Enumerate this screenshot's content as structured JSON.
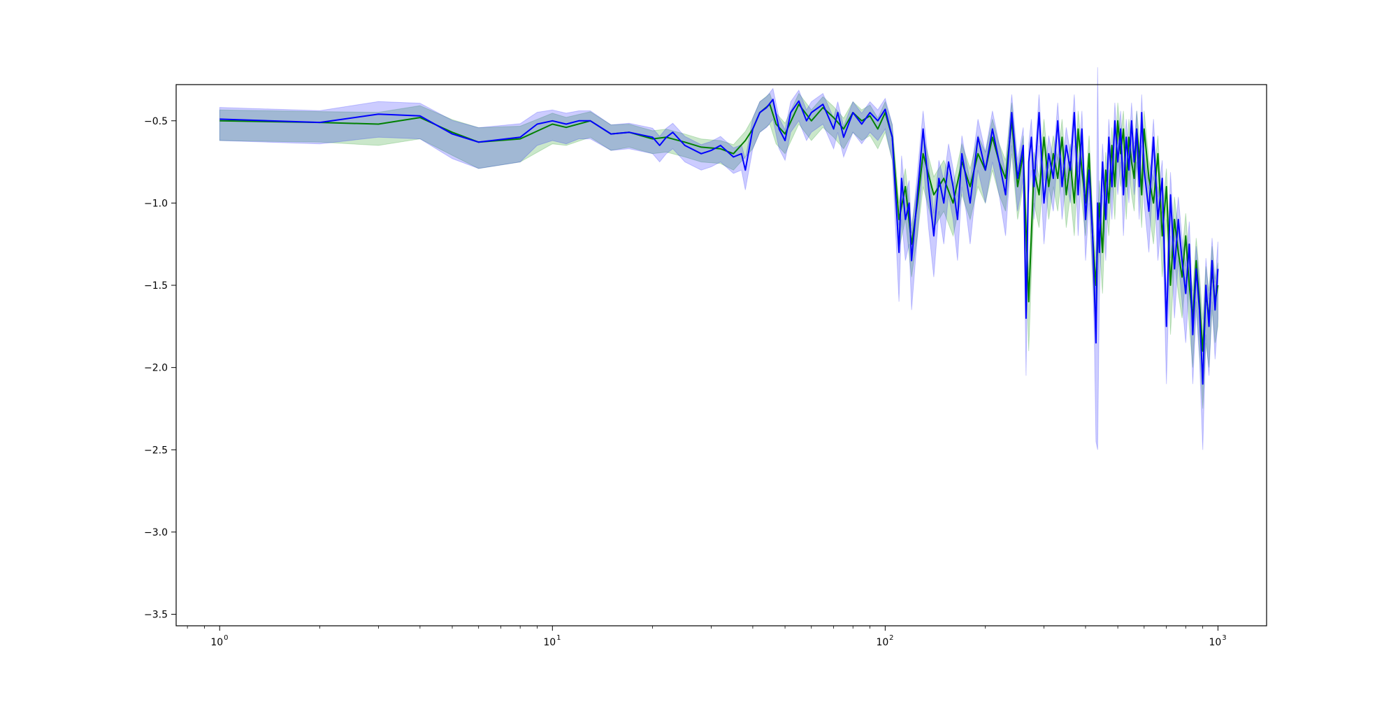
{
  "chart_data": {
    "type": "line",
    "title": "",
    "xlabel": "",
    "ylabel": "",
    "xscale": "log",
    "xlim": [
      0.74,
      1400
    ],
    "ylim": [
      -3.57,
      -0.28
    ],
    "grid": false,
    "legend": "none",
    "x_ticks": [
      {
        "value": 1,
        "base": "10",
        "exp": "0"
      },
      {
        "value": 10,
        "base": "10",
        "exp": "1"
      },
      {
        "value": 100,
        "base": "10",
        "exp": "2"
      },
      {
        "value": 1000,
        "base": "10",
        "exp": "3"
      }
    ],
    "y_ticks": [
      {
        "value": -0.5,
        "label": "−0.5"
      },
      {
        "value": -1.0,
        "label": "−1.0"
      },
      {
        "value": -1.5,
        "label": "−1.5"
      },
      {
        "value": -2.0,
        "label": "−2.0"
      },
      {
        "value": -2.5,
        "label": "−2.5"
      },
      {
        "value": -3.0,
        "label": "−3.0"
      },
      {
        "value": -3.5,
        "label": "−3.5"
      }
    ],
    "series": [
      {
        "color": "#008000",
        "band_color": "#2ca02c",
        "band_opacity": 0.25,
        "x": [
          1,
          2,
          3,
          4,
          5,
          6,
          8,
          10,
          11,
          13,
          15,
          17,
          20,
          22,
          25,
          28,
          32,
          35,
          38,
          40,
          42,
          45,
          47,
          50,
          55,
          60,
          65,
          70,
          75,
          80,
          85,
          90,
          95,
          100,
          105,
          110,
          115,
          120,
          125,
          130,
          140,
          150,
          160,
          170,
          180,
          190,
          200,
          210,
          220,
          230,
          240,
          250,
          260,
          270,
          280,
          290,
          300,
          310,
          320,
          330,
          340,
          350,
          360,
          370,
          380,
          390,
          400,
          410,
          420,
          430,
          440,
          450,
          460,
          470,
          480,
          490,
          500,
          510,
          520,
          530,
          540,
          550,
          560,
          570,
          580,
          590,
          600,
          620,
          640,
          660,
          680,
          700,
          720,
          740,
          760,
          780,
          800,
          820,
          840,
          860,
          880,
          900,
          920,
          940,
          960,
          980,
          1000
        ],
        "y": [
          -0.5,
          -0.51,
          -0.52,
          -0.48,
          -0.57,
          -0.63,
          -0.61,
          -0.52,
          -0.54,
          -0.5,
          -0.58,
          -0.57,
          -0.61,
          -0.6,
          -0.63,
          -0.66,
          -0.67,
          -0.7,
          -0.62,
          -0.55,
          -0.45,
          -0.4,
          -0.52,
          -0.58,
          -0.4,
          -0.5,
          -0.42,
          -0.48,
          -0.55,
          -0.45,
          -0.5,
          -0.47,
          -0.55,
          -0.45,
          -0.6,
          -1.1,
          -0.9,
          -1.25,
          -1.0,
          -0.7,
          -0.95,
          -0.85,
          -1.0,
          -0.75,
          -0.9,
          -0.7,
          -0.8,
          -0.6,
          -0.75,
          -0.85,
          -0.5,
          -0.9,
          -0.7,
          -1.6,
          -0.8,
          -0.95,
          -0.6,
          -0.9,
          -0.7,
          -0.85,
          -0.6,
          -0.95,
          -0.75,
          -1.0,
          -0.55,
          -0.8,
          -1.0,
          -0.7,
          -1.2,
          -1.5,
          -1.0,
          -1.3,
          -0.8,
          -1.0,
          -0.65,
          -0.9,
          -0.5,
          -0.7,
          -0.55,
          -0.9,
          -0.6,
          -0.75,
          -0.85,
          -0.55,
          -0.7,
          -0.95,
          -0.55,
          -0.85,
          -1.0,
          -0.7,
          -1.2,
          -0.9,
          -1.5,
          -1.1,
          -1.3,
          -1.45,
          -1.2,
          -1.5,
          -1.7,
          -1.35,
          -1.6,
          -1.9,
          -1.55,
          -1.7,
          -1.4,
          -1.6,
          -1.5
        ],
        "band_width": [
          0.12,
          0.12,
          0.13,
          0.13,
          0.14,
          0.16,
          0.14,
          0.12,
          0.11,
          0.1,
          0.1,
          0.09,
          0.09,
          0.09,
          0.09,
          0.09,
          0.09,
          0.1,
          0.1,
          0.12,
          0.12,
          0.12,
          0.12,
          0.12,
          0.12,
          0.12,
          0.12,
          0.12,
          0.12,
          0.12,
          0.12,
          0.12,
          0.12,
          0.12,
          0.14,
          0.18,
          0.2,
          0.2,
          0.2,
          0.2,
          0.2,
          0.2,
          0.2,
          0.2,
          0.2,
          0.2,
          0.2,
          0.2,
          0.2,
          0.2,
          0.2,
          0.2,
          0.2,
          0.3,
          0.2,
          0.2,
          0.2,
          0.2,
          0.2,
          0.2,
          0.2,
          0.2,
          0.2,
          0.2,
          0.2,
          0.2,
          0.2,
          0.2,
          0.25,
          0.3,
          0.25,
          0.25,
          0.2,
          0.2,
          0.2,
          0.2,
          0.2,
          0.2,
          0.2,
          0.2,
          0.2,
          0.2,
          0.2,
          0.2,
          0.2,
          0.2,
          0.2,
          0.2,
          0.25,
          0.2,
          0.25,
          0.2,
          0.3,
          0.25,
          0.25,
          0.25,
          0.25,
          0.25,
          0.3,
          0.25,
          0.3,
          0.35,
          0.3,
          0.3,
          0.25,
          0.25,
          0.25
        ]
      },
      {
        "color": "#0000ff",
        "band_color": "#0000ff",
        "band_opacity": 0.2,
        "x": [
          1,
          2,
          3,
          4,
          5,
          6,
          8,
          9,
          10,
          11,
          12,
          13,
          15,
          17,
          20,
          21,
          22,
          23,
          25,
          28,
          30,
          32,
          35,
          37,
          38,
          40,
          42,
          44,
          46,
          48,
          50,
          52,
          55,
          58,
          60,
          65,
          70,
          72,
          75,
          80,
          85,
          90,
          95,
          100,
          105,
          110,
          112,
          115,
          118,
          120,
          125,
          130,
          135,
          140,
          145,
          150,
          155,
          160,
          165,
          170,
          175,
          180,
          190,
          200,
          210,
          220,
          230,
          240,
          250,
          260,
          265,
          270,
          275,
          280,
          290,
          300,
          310,
          320,
          330,
          340,
          350,
          360,
          370,
          380,
          390,
          400,
          410,
          420,
          425,
          430,
          435,
          440,
          450,
          460,
          470,
          480,
          490,
          500,
          510,
          520,
          530,
          540,
          550,
          560,
          570,
          580,
          590,
          600,
          620,
          640,
          660,
          680,
          700,
          720,
          740,
          760,
          780,
          800,
          820,
          840,
          860,
          880,
          900,
          920,
          940,
          960,
          980,
          1000
        ],
        "y": [
          -0.49,
          -0.51,
          -0.46,
          -0.47,
          -0.58,
          -0.63,
          -0.6,
          -0.52,
          -0.5,
          -0.52,
          -0.5,
          -0.5,
          -0.58,
          -0.57,
          -0.6,
          -0.65,
          -0.6,
          -0.57,
          -0.65,
          -0.7,
          -0.68,
          -0.65,
          -0.72,
          -0.7,
          -0.8,
          -0.55,
          -0.45,
          -0.42,
          -0.37,
          -0.55,
          -0.62,
          -0.45,
          -0.38,
          -0.5,
          -0.45,
          -0.4,
          -0.55,
          -0.45,
          -0.6,
          -0.45,
          -0.52,
          -0.45,
          -0.5,
          -0.43,
          -0.6,
          -1.3,
          -0.85,
          -1.1,
          -1.0,
          -1.35,
          -0.95,
          -0.55,
          -0.9,
          -1.2,
          -0.85,
          -1.0,
          -0.75,
          -0.9,
          -1.1,
          -0.7,
          -0.85,
          -1.0,
          -0.6,
          -0.8,
          -0.55,
          -0.75,
          -0.95,
          -0.45,
          -0.85,
          -0.65,
          -1.7,
          -0.75,
          -0.6,
          -0.9,
          -0.45,
          -1.0,
          -0.7,
          -0.85,
          -0.5,
          -0.9,
          -0.65,
          -0.8,
          -0.45,
          -0.95,
          -0.55,
          -1.1,
          -0.8,
          -1.2,
          -1.5,
          -1.85,
          -1.0,
          -1.3,
          -0.75,
          -1.1,
          -0.6,
          -0.9,
          -0.5,
          -0.75,
          -0.55,
          -0.95,
          -0.6,
          -0.8,
          -0.5,
          -0.75,
          -0.55,
          -0.9,
          -0.45,
          -0.8,
          -1.05,
          -0.6,
          -1.1,
          -0.85,
          -1.75,
          -0.95,
          -1.4,
          -1.1,
          -1.35,
          -1.55,
          -1.25,
          -1.8,
          -1.4,
          -1.65,
          -2.1,
          -1.5,
          -1.75,
          -1.35,
          -1.65,
          -1.4
        ],
        "band_width": [
          0.13,
          0.13,
          0.14,
          0.14,
          0.15,
          0.16,
          0.15,
          0.13,
          0.12,
          0.12,
          0.11,
          0.11,
          0.1,
          0.1,
          0.1,
          0.1,
          0.1,
          0.1,
          0.1,
          0.1,
          0.1,
          0.1,
          0.1,
          0.1,
          0.12,
          0.12,
          0.12,
          0.12,
          0.12,
          0.12,
          0.12,
          0.12,
          0.12,
          0.12,
          0.12,
          0.12,
          0.12,
          0.12,
          0.12,
          0.12,
          0.12,
          0.12,
          0.12,
          0.12,
          0.14,
          0.3,
          0.25,
          0.25,
          0.25,
          0.3,
          0.25,
          0.2,
          0.25,
          0.25,
          0.2,
          0.25,
          0.2,
          0.2,
          0.25,
          0.2,
          0.2,
          0.25,
          0.2,
          0.2,
          0.2,
          0.2,
          0.25,
          0.2,
          0.2,
          0.2,
          0.35,
          0.2,
          0.2,
          0.2,
          0.2,
          0.25,
          0.2,
          0.2,
          0.2,
          0.2,
          0.2,
          0.2,
          0.2,
          0.25,
          0.2,
          0.25,
          0.2,
          0.25,
          0.3,
          0.6,
          1.5,
          0.3,
          0.2,
          0.25,
          0.2,
          0.2,
          0.2,
          0.2,
          0.2,
          0.25,
          0.2,
          0.2,
          0.2,
          0.2,
          0.2,
          0.2,
          0.2,
          0.2,
          0.25,
          0.2,
          0.25,
          0.2,
          0.35,
          0.25,
          0.3,
          0.25,
          0.25,
          0.3,
          0.25,
          0.3,
          0.25,
          0.3,
          0.4,
          0.3,
          0.3,
          0.25,
          0.3,
          0.3
        ]
      }
    ]
  }
}
